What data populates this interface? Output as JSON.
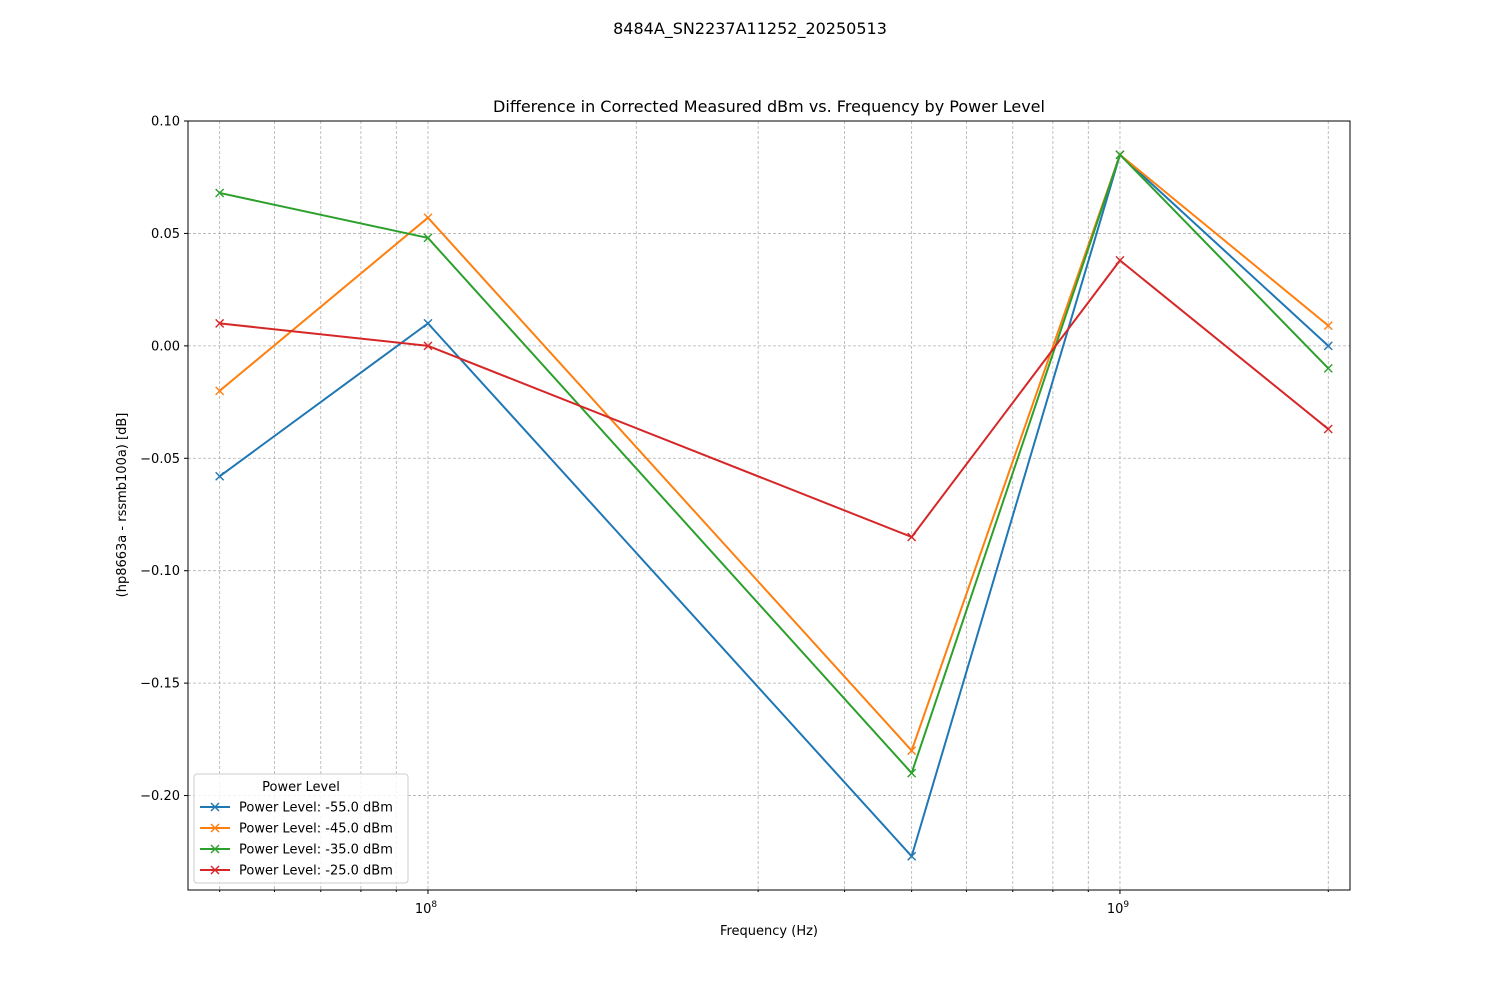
{
  "figure": {
    "suptitle": "8484A_SN2237A11252_20250513"
  },
  "chart_data": {
    "type": "line",
    "title": "Difference in Corrected Measured dBm vs. Frequency by Power Level",
    "xlabel": "Frequency (Hz)",
    "ylabel": "(hp8663a - rssmb100a) [dB]",
    "xscale": "log",
    "xlim": [
      45000000,
      2150000000
    ],
    "ylim": [
      -0.242,
      0.1
    ],
    "x": [
      50000000,
      100000000,
      500000000,
      1000000000,
      2000000000
    ],
    "xticks": [
      {
        "value": 100000000,
        "base": "10",
        "exp": "8"
      },
      {
        "value": 1000000000,
        "base": "10",
        "exp": "9"
      }
    ],
    "yticks": [
      {
        "value": 0.1,
        "label": "0.10"
      },
      {
        "value": 0.05,
        "label": "0.05"
      },
      {
        "value": 0.0,
        "label": "0.00"
      },
      {
        "value": -0.05,
        "label": "−0.05"
      },
      {
        "value": -0.1,
        "label": "−0.10"
      },
      {
        "value": -0.15,
        "label": "−0.15"
      },
      {
        "value": -0.2,
        "label": "−0.20"
      }
    ],
    "grid": true,
    "marker": "x",
    "legend": {
      "title": "Power Level",
      "placement": "lower-left"
    },
    "series": [
      {
        "name": "Power Level: -55.0 dBm",
        "color": "#1f77b4",
        "values": [
          -0.058,
          0.01,
          -0.227,
          0.085,
          0.0
        ]
      },
      {
        "name": "Power Level: -45.0 dBm",
        "color": "#ff7f0e",
        "values": [
          -0.02,
          0.057,
          -0.18,
          0.085,
          0.009
        ]
      },
      {
        "name": "Power Level: -35.0 dBm",
        "color": "#2ca02c",
        "values": [
          0.068,
          0.048,
          -0.19,
          0.085,
          -0.01
        ]
      },
      {
        "name": "Power Level: -25.0 dBm",
        "color": "#d62728",
        "values": [
          0.01,
          0.0,
          -0.085,
          0.038,
          -0.037
        ]
      }
    ]
  }
}
